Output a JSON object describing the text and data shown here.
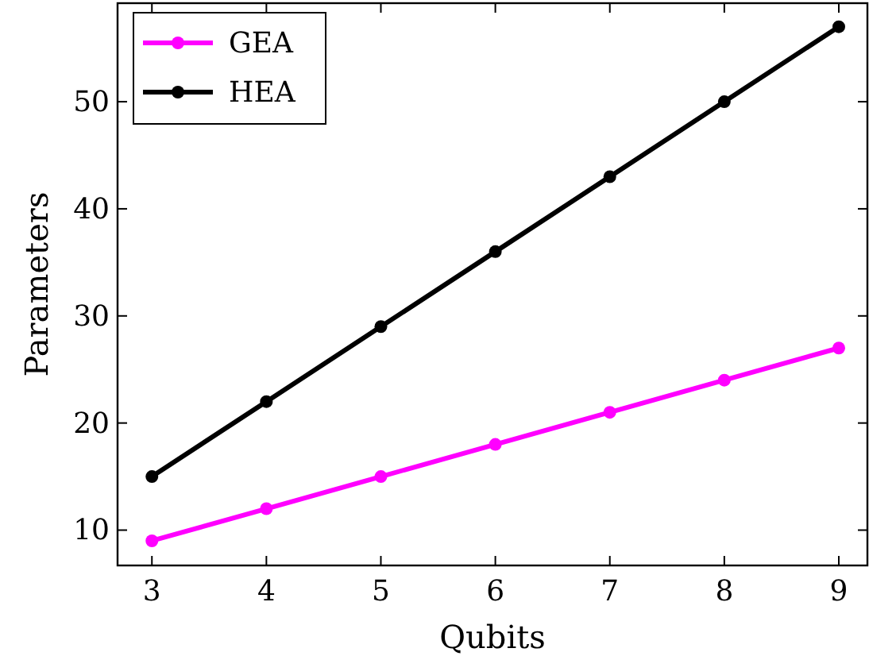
{
  "chart_data": {
    "type": "line",
    "xlabel": "Qubits",
    "ylabel": "Parameters",
    "x": [
      3,
      4,
      5,
      6,
      7,
      8,
      9
    ],
    "series": [
      {
        "name": "GEA",
        "color": "#ff00ff",
        "values": [
          9,
          12,
          15,
          18,
          21,
          24,
          27
        ]
      },
      {
        "name": "HEA",
        "color": "#000000",
        "values": [
          15,
          22,
          29,
          36,
          43,
          50,
          57
        ]
      }
    ],
    "xlim": [
      2.7,
      9.25
    ],
    "ylim": [
      6.7,
      59.2
    ],
    "xticks": [
      3,
      4,
      5,
      6,
      7,
      8,
      9
    ],
    "yticks": [
      10,
      20,
      30,
      40,
      50
    ],
    "grid": false,
    "legend": "top left",
    "marker": "circle",
    "line_style": "solid"
  }
}
